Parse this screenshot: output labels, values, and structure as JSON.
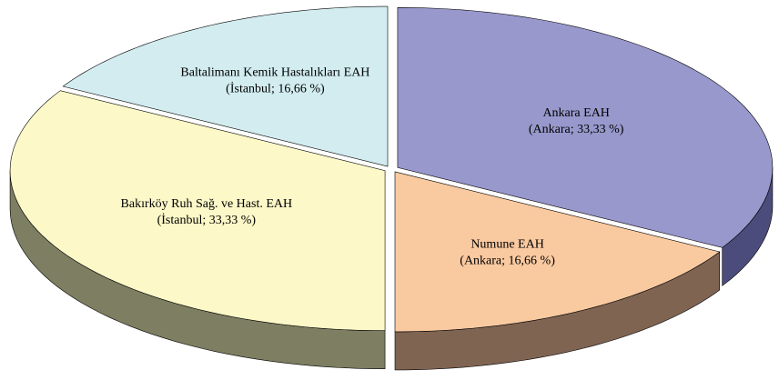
{
  "chart_data": {
    "type": "pie",
    "categories": [
      "Ankara EAH",
      "Numune EAH",
      "Bakırköy Ruh Sağ. ve Hast. EAH",
      "Baltalimanı Kemik Hastalıkları EAH"
    ],
    "values": [
      33.33,
      16.66,
      33.33,
      16.66
    ],
    "value_labels": [
      "(Ankara; 33,33 %)",
      "(Ankara; 16,66 %)",
      "(İstanbul; 33,33 %)",
      "(İstanbul; 16,66 %)"
    ],
    "colors": [
      "#9898cc",
      "#f9c9a0",
      "#fcf8c8",
      "#d2ecf0"
    ],
    "side_colors": [
      "#4c4c7c",
      "#806452",
      "#7e7e62",
      "#5e8080"
    ]
  }
}
